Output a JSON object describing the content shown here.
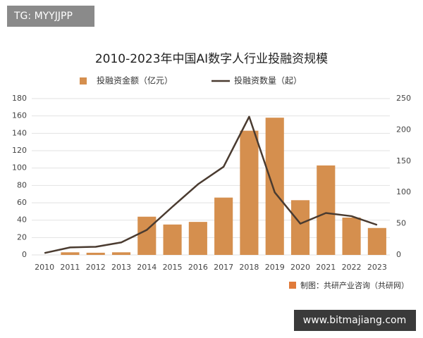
{
  "tag": "TG: MYYJJPP",
  "source": "制图：共研产业咨询（共研网）",
  "site_url": "www.bitmajiang.com",
  "chart_data": {
    "type": "bar",
    "title": "2010-2023年中国AI数字人行业投融资规模",
    "categories": [
      "2010",
      "2011",
      "2012",
      "2013",
      "2014",
      "2015",
      "2016",
      "2017",
      "2018",
      "2019",
      "2020",
      "2021",
      "2022",
      "2023"
    ],
    "series": [
      {
        "name": "投融资金额（亿元）",
        "type": "bar",
        "color": "#d58f4e",
        "values": [
          0,
          3,
          2.5,
          3,
          44,
          35,
          38,
          66,
          143,
          158,
          63,
          103,
          43,
          31
        ]
      },
      {
        "name": "投融资数量（起）",
        "type": "line",
        "axis": "y2",
        "color": "#4a3b30",
        "values": [
          3,
          12,
          13,
          20,
          40,
          77,
          113,
          141,
          221,
          100,
          50,
          67,
          62,
          48
        ]
      }
    ],
    "ylim": [
      0,
      180
    ],
    "yticks": [
      0,
      20,
      40,
      60,
      80,
      100,
      120,
      140,
      160,
      180
    ],
    "y2lim": [
      0,
      250
    ],
    "y2ticks": [
      0,
      50,
      100,
      150,
      200,
      250
    ],
    "grid": true
  }
}
